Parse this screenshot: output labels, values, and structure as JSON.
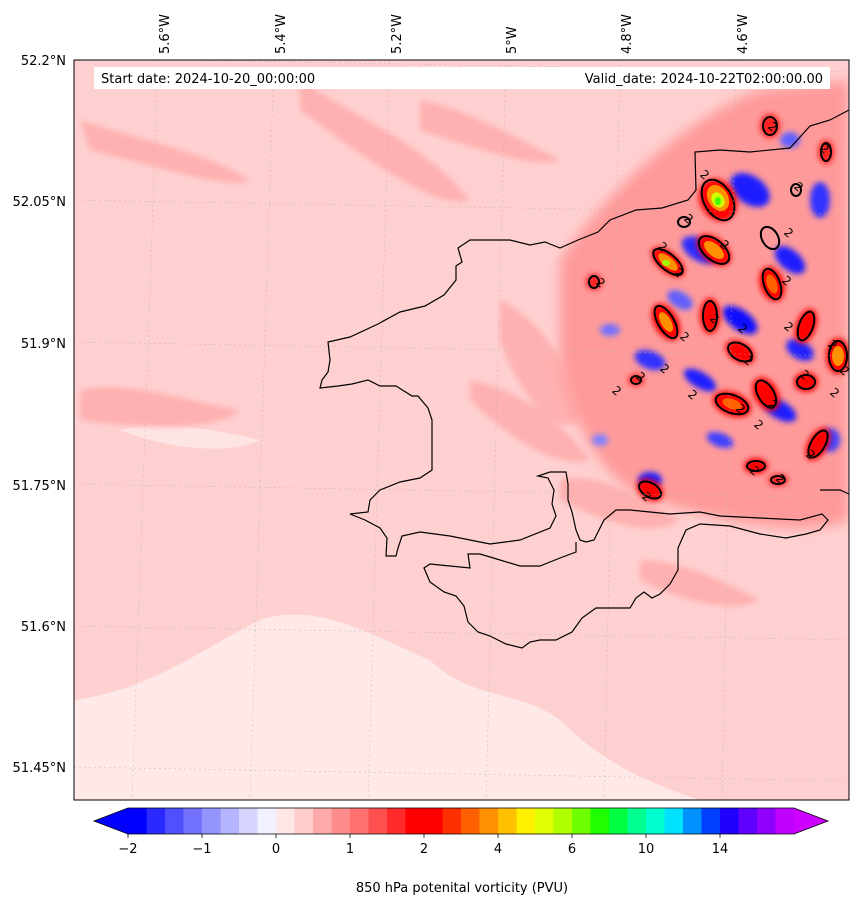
{
  "header": {
    "start_date": "Start date: 2024-10-20_00:00:00",
    "valid_date": "Valid_date: 2024-10-22T02:00:00.00"
  },
  "axes": {
    "lon_labels": [
      "5.6°W",
      "5.4°W",
      "5.2°W",
      "5°W",
      "4.8°W",
      "4.6°W"
    ],
    "lat_labels": [
      "52.2°N",
      "52.05°N",
      "51.9°N",
      "51.75°N",
      "51.6°N",
      "51.45°N"
    ]
  },
  "colorbar": {
    "title": "850 hPa potenital vorticity (PVU)",
    "tick_labels": [
      "−2",
      "−1",
      "0",
      "1",
      "2",
      "4",
      "6",
      "10",
      "14"
    ],
    "colors": [
      "#0000ff",
      "#2a2aff",
      "#5050ff",
      "#7272ff",
      "#9494ff",
      "#b4b4ff",
      "#d4d4ff",
      "#f0f0ff",
      "#ffe6e6",
      "#ffcccc",
      "#ffaaaa",
      "#ff8c8c",
      "#ff7070",
      "#ff5050",
      "#ff2a2a",
      "#ff0000",
      "#ff0000",
      "#ff3000",
      "#ff6000",
      "#ff9000",
      "#ffc000",
      "#fff000",
      "#e0ff00",
      "#b0ff00",
      "#70ff00",
      "#20ff00",
      "#00ff40",
      "#00ff90",
      "#00ffd0",
      "#00e0ff",
      "#0090ff",
      "#0040ff",
      "#2000ff",
      "#6000ff",
      "#9000ff",
      "#c000ff"
    ],
    "under_color": "#0000ff",
    "over_color": "#cc00ff"
  },
  "contour_labels": [
    "2",
    "2",
    "2",
    "2",
    "2",
    "2",
    "2",
    "2",
    "2",
    "2",
    "2",
    "2",
    "2",
    "2",
    "2",
    "2",
    "2",
    "2",
    "2",
    "2",
    "2",
    "2",
    "2",
    "2",
    "2",
    "2",
    "2",
    "2",
    "2",
    "2",
    "2"
  ],
  "colors": {
    "background": "#ffd0d0",
    "light": "#ffe8e8",
    "mid": "#ffb0b0",
    "coast": "#000000"
  }
}
